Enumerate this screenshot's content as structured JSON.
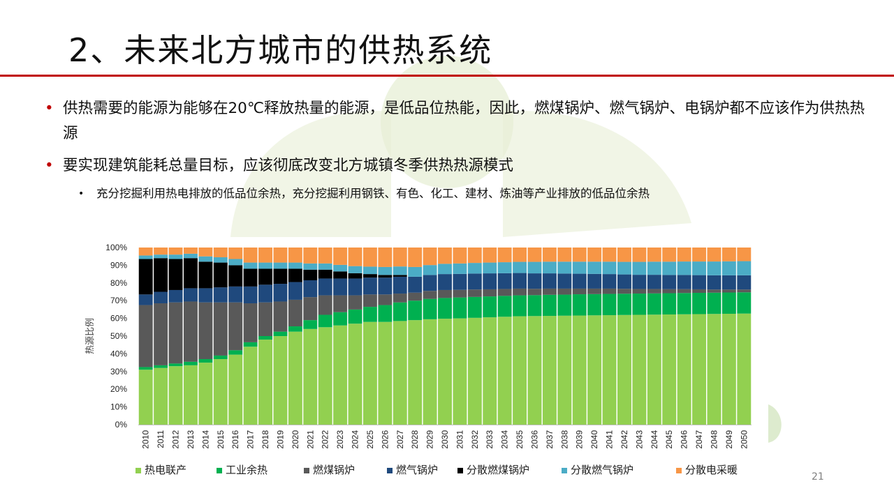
{
  "slide": {
    "title": "2、未来北方城市的供热系统",
    "bullet1": "供热需要的能源为能够在20℃释放热量的能源，是低品位热能，因此，燃煤锅炉、燃气锅炉、电锅炉都不应该作为供热热源",
    "bullet2": "要实现建筑能耗总量目标，应该彻底改变北方城镇冬季供热热源模式",
    "sub_bullet": "充分挖掘利用热电排放的低品位余热，充分挖掘利用钢铁、有色、化工、建材、炼油等产业排放的低品位余热",
    "bullet_glyph": "•",
    "page_number": "21"
  },
  "chart_data": {
    "type": "bar",
    "stacked": true,
    "ylabel": "热源比例",
    "ylim": [
      0,
      100
    ],
    "yticks": [
      "0%",
      "10%",
      "20%",
      "30%",
      "40%",
      "50%",
      "60%",
      "70%",
      "80%",
      "90%",
      "100%"
    ],
    "legend_position": "bottom",
    "categories": [
      "2010",
      "2011",
      "2012",
      "2013",
      "2014",
      "2015",
      "2016",
      "2017",
      "2018",
      "2019",
      "2020",
      "2021",
      "2022",
      "2023",
      "2024",
      "2025",
      "2026",
      "2027",
      "2028",
      "2029",
      "2030",
      "2031",
      "2032",
      "2033",
      "2034",
      "2035",
      "2036",
      "2037",
      "2038",
      "2039",
      "2040",
      "2041",
      "2042",
      "2043",
      "2044",
      "2045",
      "2046",
      "2047",
      "2048",
      "2049",
      "2050"
    ],
    "series": [
      {
        "name": "热电联产",
        "color": "#92d050",
        "values": [
          31,
          32,
          33,
          33.5,
          35,
          37,
          39.5,
          44,
          48,
          50,
          52.5,
          54,
          55,
          56,
          57,
          58,
          58,
          58.5,
          59,
          59.5,
          59.8,
          60,
          60.3,
          60.6,
          60.9,
          61.2,
          61.3,
          61.4,
          61.5,
          61.6,
          61.7,
          61.8,
          61.9,
          62,
          62.1,
          62.2,
          62.3,
          62.4,
          62.5,
          62.6,
          62.7
        ]
      },
      {
        "name": "工业余热",
        "color": "#00b050",
        "values": [
          1.5,
          1.5,
          1.5,
          2,
          2,
          2,
          2.5,
          2.5,
          2,
          2.5,
          3,
          5,
          7,
          7.5,
          8,
          8.5,
          9.5,
          10.5,
          11,
          11.5,
          11.7,
          11.8,
          11.8,
          11.8,
          11.8,
          11.8,
          11.8,
          11.9,
          11.9,
          12,
          12,
          12,
          12,
          12,
          12,
          12,
          12,
          12,
          12,
          12,
          12
        ]
      },
      {
        "name": "燃煤锅炉",
        "color": "#595959",
        "values": [
          35,
          35,
          34.5,
          34,
          32,
          30,
          27,
          22,
          19,
          17,
          15,
          13,
          11,
          9.5,
          8,
          7,
          6,
          5,
          4.5,
          4.5,
          4.5,
          4.3,
          4.2,
          4,
          3.9,
          3.8,
          3.6,
          3.5,
          3.4,
          3.2,
          3.1,
          3,
          2.8,
          2.6,
          2.5,
          2.3,
          2.2,
          2,
          1.8,
          1.7,
          1.6
        ]
      },
      {
        "name": "燃气锅炉",
        "color": "#1f497d",
        "values": [
          6,
          6.5,
          7,
          7.5,
          8,
          8.5,
          9,
          9.5,
          10,
          10,
          10,
          9.5,
          9.5,
          9.5,
          9.5,
          9.5,
          9.5,
          9.5,
          9,
          9,
          9,
          9,
          9,
          9,
          8.9,
          8.8,
          8.7,
          8.6,
          8.5,
          8.4,
          8.3,
          8.2,
          8.1,
          8,
          8,
          8,
          8,
          8,
          8,
          8,
          8
        ]
      },
      {
        "name": "分散燃煤锅炉",
        "color": "#000000",
        "values": [
          20,
          19,
          17.5,
          17,
          15,
          14,
          12,
          10,
          9,
          8.5,
          7.5,
          6,
          5,
          4,
          3,
          2,
          1.5,
          1,
          0,
          0,
          0,
          0,
          0,
          0,
          0,
          0,
          0,
          0,
          0,
          0,
          0,
          0,
          0,
          0,
          0,
          0,
          0,
          0,
          0,
          0,
          0
        ]
      },
      {
        "name": "分散燃气锅炉",
        "color": "#4bacc6",
        "values": [
          2,
          2,
          2.5,
          2.5,
          3,
          3,
          3.5,
          3.5,
          3.5,
          3.5,
          3.5,
          3.5,
          3.5,
          3.7,
          4,
          4.2,
          4.5,
          4.8,
          5.5,
          5.6,
          5.8,
          5.9,
          6,
          6.1,
          6.2,
          6.3,
          6.5,
          6.6,
          6.7,
          6.8,
          6.9,
          7,
          7.1,
          7.3,
          7.4,
          7.5,
          7.6,
          7.7,
          7.8,
          7.9,
          8
        ]
      },
      {
        "name": "分散电采暖",
        "color": "#f79646",
        "values": [
          4.5,
          4,
          4,
          3.5,
          5,
          5.5,
          6.5,
          8.5,
          8.5,
          8.5,
          8.5,
          9,
          9,
          9.8,
          10.5,
          10.8,
          11,
          10.7,
          11,
          9.9,
          9.2,
          9,
          8.7,
          8.5,
          8.3,
          8.1,
          8.1,
          8,
          8,
          8,
          8,
          8,
          8.1,
          8.1,
          8,
          8,
          7.9,
          7.9,
          7.9,
          7.8,
          7.7
        ]
      }
    ]
  }
}
